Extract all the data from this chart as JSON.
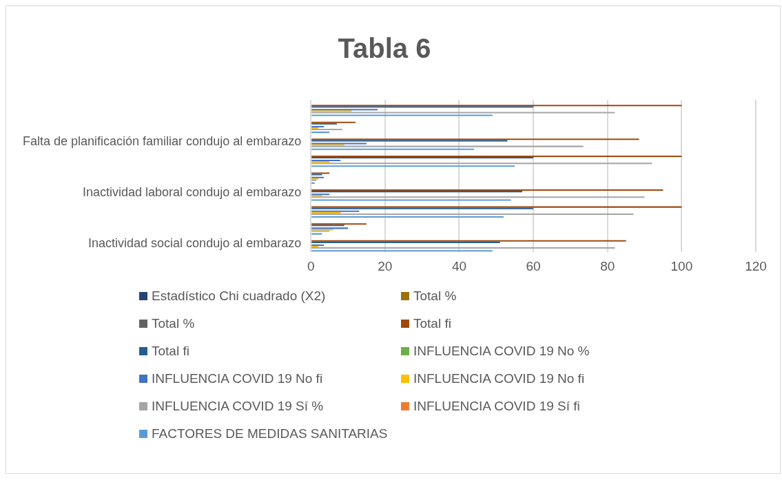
{
  "chart_data": {
    "type": "bar",
    "orientation": "horizontal",
    "title": "Tabla 6",
    "categories": [
      null,
      null,
      "Falta de planificación familiar condujo al embarazo",
      null,
      null,
      "Inactividad laboral condujo al embarazo",
      null,
      null,
      "Inactividad social condujo al embarazo"
    ],
    "series": [
      {
        "name": "Estadístico Chi cuadrado (X2)",
        "color": "#264478",
        "values": [
          null,
          null,
          null,
          null,
          null,
          null,
          null,
          null,
          null
        ]
      },
      {
        "name": "Total %",
        "color": "#997300",
        "values": [
          null,
          null,
          null,
          null,
          null,
          null,
          null,
          null,
          null
        ]
      },
      {
        "name": "Total %",
        "color": "#636363",
        "values": [
          null,
          null,
          null,
          null,
          null,
          null,
          null,
          null,
          null
        ]
      },
      {
        "name": "Total fi",
        "color": "#9e480e",
        "values": [
          100,
          12,
          88.5,
          100,
          5,
          95,
          100,
          15,
          85
        ]
      },
      {
        "name": "Total fi",
        "color": "#255e91",
        "values": [
          60,
          7,
          53,
          60,
          3,
          57,
          60,
          9,
          51
        ]
      },
      {
        "name": "INFLUENCIA COVID 19 No %",
        "color": "#70ad47",
        "values": [
          null,
          null,
          null,
          null,
          null,
          null,
          null,
          null,
          null
        ]
      },
      {
        "name": "INFLUENCIA COVID 19 No fi",
        "color": "#4472c4",
        "values": [
          18,
          3.5,
          15,
          8,
          3.5,
          5,
          13,
          10,
          3.5
        ]
      },
      {
        "name": "INFLUENCIA COVID 19 No fi",
        "color": "#ffc000",
        "values": [
          11,
          2,
          9,
          5,
          2,
          3,
          8,
          6,
          2
        ]
      },
      {
        "name": "INFLUENCIA COVID 19 Sí %",
        "color": "#a5a5a5",
        "values": [
          82,
          8.5,
          73.5,
          92,
          1.5,
          90,
          87,
          5,
          82
        ]
      },
      {
        "name": "INFLUENCIA COVID 19 Sí fi",
        "color": "#ed7d31",
        "values": [
          null,
          null,
          null,
          null,
          null,
          null,
          null,
          null,
          null
        ]
      },
      {
        "name": "FACTORES DE MEDIDAS SANITARIAS",
        "color": "#5b9bd5",
        "values": [
          49,
          5,
          44,
          55,
          1,
          54,
          52,
          3,
          49
        ]
      }
    ],
    "xlim": [
      0,
      120
    ],
    "xticks": [
      0,
      20,
      40,
      60,
      80,
      100,
      120
    ],
    "grid": "x",
    "legend": "bottom"
  }
}
